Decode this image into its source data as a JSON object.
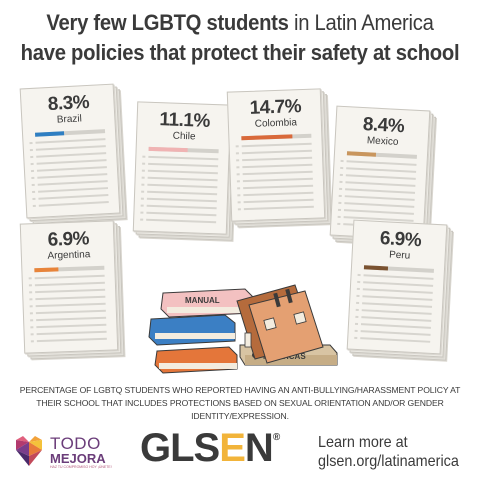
{
  "title": {
    "line1_bold": "Very few LGBTQ students",
    "line1_rest": " in Latin America",
    "line2": "have policies that protect their safety at school"
  },
  "cards": [
    {
      "percent": "8.3%",
      "country": "Brazil",
      "value": 8.3,
      "color": "#2f7fc2"
    },
    {
      "percent": "11.1%",
      "country": "Chile",
      "value": 11.1,
      "color": "#f0b3b3"
    },
    {
      "percent": "14.7%",
      "country": "Colombia",
      "value": 14.7,
      "color": "#d9693a"
    },
    {
      "percent": "8.4%",
      "country": "Mexico",
      "value": 8.4,
      "color": "#c9965e"
    },
    {
      "percent": "6.9%",
      "country": "Argentina",
      "value": 6.9,
      "color": "#e8843a"
    },
    {
      "percent": "6.9%",
      "country": "Peru",
      "value": 6.9,
      "color": "#7a5230"
    }
  ],
  "books": {
    "manual_label": "MANUAL",
    "politicas_label": "POLÍTICAS"
  },
  "footnote": {
    "line1": "PERCENTAGE OF LGBTQ STUDENTS WHO REPORTED HAVING AN ANTI-BULLYING/HARASSMENT POLICY AT",
    "line2": "THEIR SCHOOL THAT INCLUDES PROTECTIONS BASED ON SEXUAL ORIENTATION AND/OR GENDER IDENTITY/EXPRESSION."
  },
  "footer": {
    "todo": "TODO",
    "mejora": "MEJORA",
    "todo_sub": "HAZ TU COMPROMISO HOY ¡ÚNETE!",
    "glsen_prefix": "GLS",
    "glsen_e": "E",
    "glsen_suffix": "N",
    "glsen_reg": "®",
    "learn_line1": "Learn more at",
    "learn_line2": "glsen.org/latinamerica"
  },
  "colors": {
    "text": "#3a3a3a",
    "glsen_accent": "#f2b43a",
    "todo_purple": "#6b3d7a"
  }
}
